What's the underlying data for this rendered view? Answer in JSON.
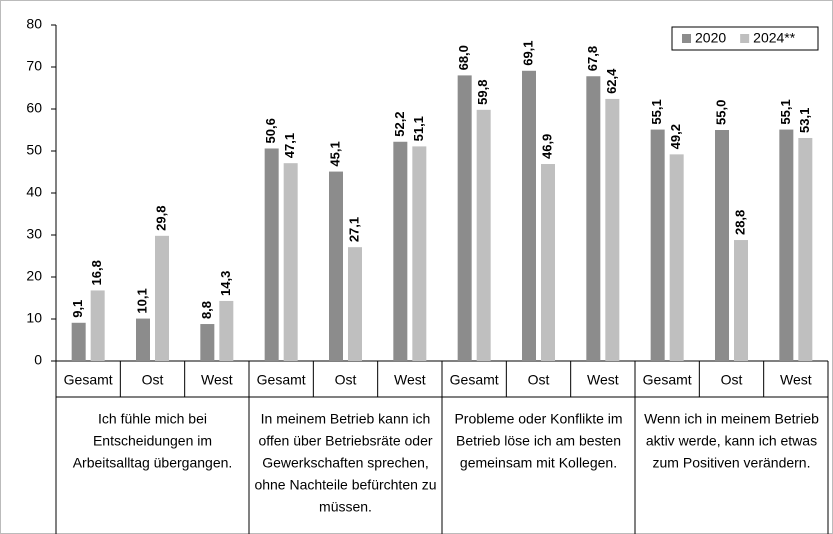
{
  "chart_data": {
    "type": "bar",
    "categories": [
      "Gesamt",
      "Ost",
      "West",
      "Gesamt",
      "Ost",
      "West",
      "Gesamt",
      "Ost",
      "West",
      "Gesamt",
      "Ost",
      "West"
    ],
    "groups": [
      [
        "Ich fühle mich bei",
        "Entscheidungen im",
        "Arbeitsalltag übergangen."
      ],
      [
        "In meinem Betrieb kann ich",
        "offen über Betriebsräte oder",
        "Gewerkschaften sprechen,",
        "ohne Nachteile befürchten zu",
        "müssen."
      ],
      [
        "Probleme oder Konflikte im",
        "Betrieb löse ich am besten",
        "gemeinsam mit Kollegen."
      ],
      [
        "Wenn ich in meinem Betrieb",
        "aktiv werde, kann ich etwas",
        "zum Positiven verändern."
      ]
    ],
    "series": [
      {
        "name": "2020",
        "color": "#8c8c8c",
        "values": [
          9.1,
          10.1,
          8.8,
          50.6,
          45.1,
          52.2,
          68.0,
          69.1,
          67.8,
          55.1,
          55.0,
          55.1
        ],
        "value_labels": [
          "9,1",
          "10,1",
          "8,8",
          "50,6",
          "45,1",
          "52,2",
          "68,0",
          "69,1",
          "67,8",
          "55,1",
          "55,0",
          "55,1"
        ]
      },
      {
        "name": "2024**",
        "color": "#bfbfbf",
        "values": [
          16.8,
          29.8,
          14.3,
          47.1,
          27.1,
          51.1,
          59.8,
          46.9,
          62.4,
          49.2,
          28.8,
          53.1
        ],
        "value_labels": [
          "16,8",
          "29,8",
          "14,3",
          "47,1",
          "27,1",
          "51,1",
          "59,8",
          "46,9",
          "62,4",
          "49,2",
          "28,8",
          "53,1"
        ]
      }
    ],
    "ylim": [
      0,
      80
    ],
    "yticks": [
      0,
      10,
      20,
      30,
      40,
      50,
      60,
      70,
      80
    ],
    "legend": "top-right"
  }
}
